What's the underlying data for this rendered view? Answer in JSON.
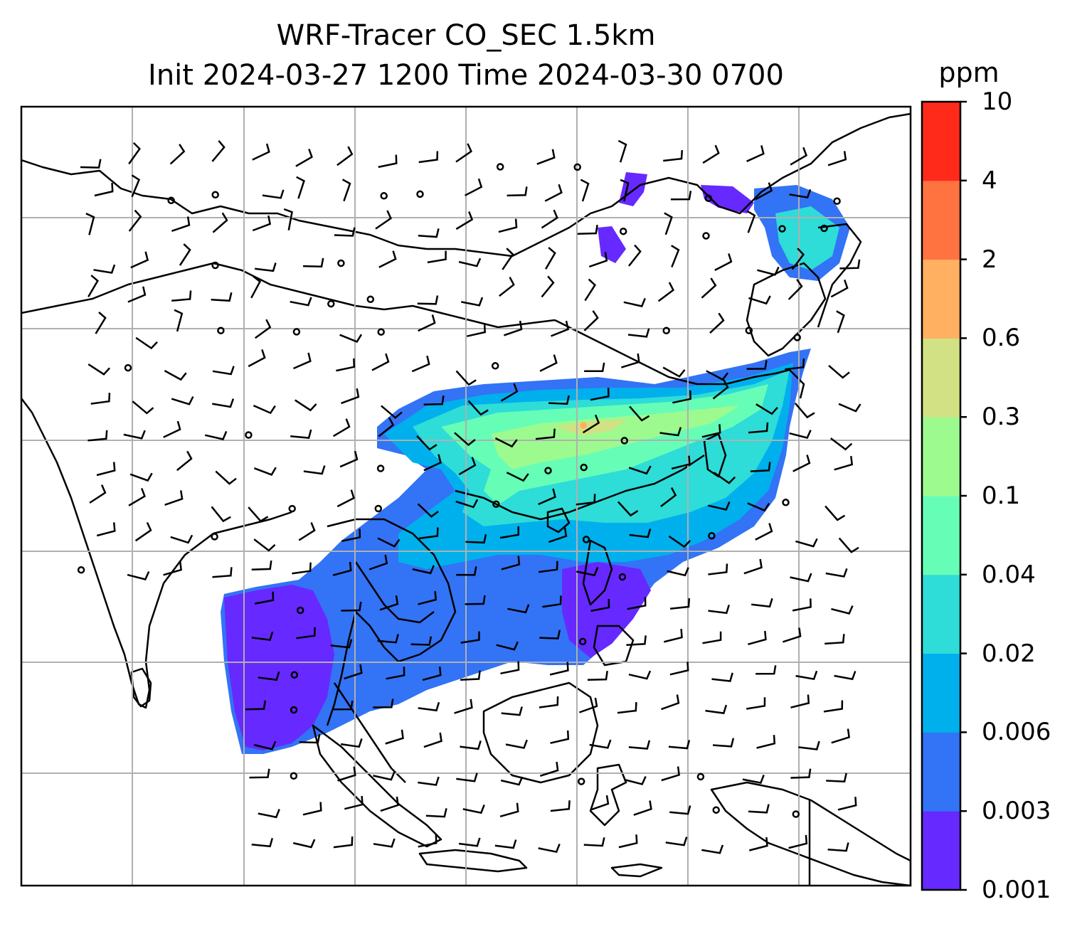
{
  "title": {
    "line1": "WRF-Tracer CO_SEC 1.5km",
    "line2": "Init 2024-03-27 1200 Time 2024-03-30 0700"
  },
  "colorbar": {
    "unit": "ppm",
    "levels": [
      "0.001",
      "0.003",
      "0.006",
      "0.02",
      "0.04",
      "0.1",
      "0.3",
      "0.6",
      "2",
      "4",
      "10"
    ],
    "colors": [
      "#6629ff",
      "#3373f5",
      "#00b0ec",
      "#2edcd8",
      "#66fdb6",
      "#9cfa8f",
      "#d2e183",
      "#ffb060",
      "#ff7341",
      "#ff2a1a"
    ]
  },
  "map": {
    "grid": "on",
    "background": "#ffffff",
    "coastline_color": "#000000",
    "features": [
      "coastlines",
      "country-borders",
      "wind-barbs",
      "calm-circles",
      "tracer-plume"
    ]
  }
}
